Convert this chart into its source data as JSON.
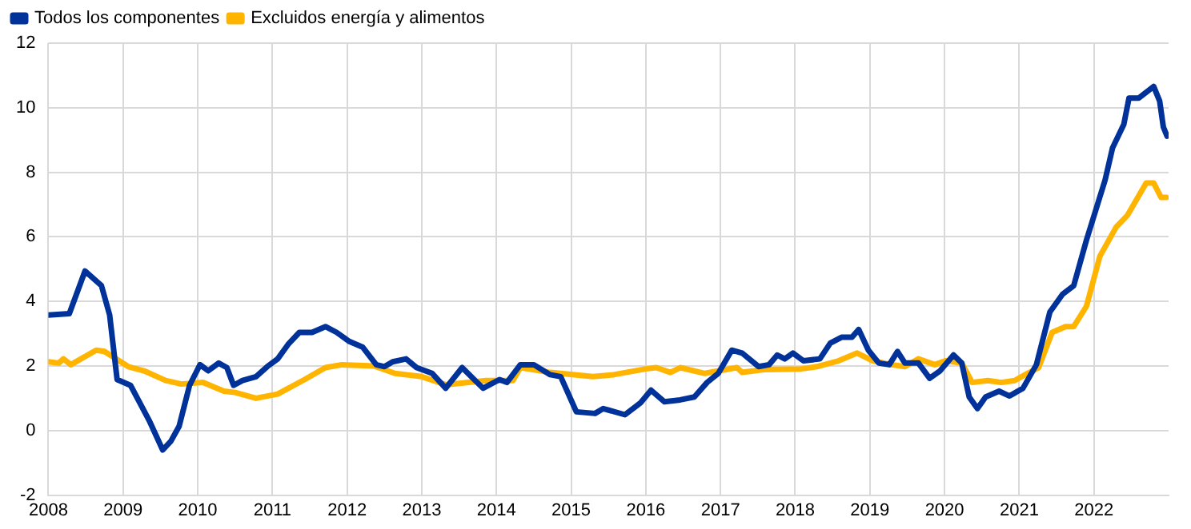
{
  "chart_data": {
    "type": "line",
    "xlim": [
      2008,
      2023
    ],
    "xticks": [
      2008,
      2009,
      2010,
      2011,
      2012,
      2013,
      2014,
      2015,
      2016,
      2017,
      2018,
      2019,
      2020,
      2021,
      2022
    ],
    "ylim": [
      -2,
      12
    ],
    "yticks": [
      -2,
      0,
      2,
      4,
      6,
      8,
      10,
      12
    ],
    "grid": true,
    "legend": "top left",
    "marker": "none",
    "line_style": "solid",
    "series": [
      {
        "name": "Todos los componentes",
        "color": "#003299",
        "x": [
          2008.0,
          2008.28,
          2008.49,
          2008.71,
          2008.82,
          2008.92,
          2009.1,
          2009.35,
          2009.53,
          2009.64,
          2009.75,
          2009.89,
          2010.03,
          2010.14,
          2010.28,
          2010.39,
          2010.48,
          2010.6,
          2010.78,
          2010.93,
          2011.07,
          2011.21,
          2011.36,
          2011.53,
          2011.71,
          2011.86,
          2012.03,
          2012.21,
          2012.39,
          2012.5,
          2012.61,
          2012.79,
          2012.93,
          2013.14,
          2013.32,
          2013.54,
          2013.82,
          2014.04,
          2014.14,
          2014.32,
          2014.5,
          2014.72,
          2014.86,
          2015.07,
          2015.32,
          2015.43,
          2015.72,
          2015.93,
          2016.07,
          2016.25,
          2016.46,
          2016.65,
          2016.82,
          2016.97,
          2017.15,
          2017.29,
          2017.51,
          2017.65,
          2017.76,
          2017.86,
          2017.97,
          2018.11,
          2018.33,
          2018.47,
          2018.62,
          2018.76,
          2018.85,
          2018.98,
          2019.12,
          2019.26,
          2019.37,
          2019.47,
          2019.65,
          2019.8,
          2019.94,
          2020.12,
          2020.23,
          2020.33,
          2020.44,
          2020.55,
          2020.73,
          2020.87,
          2021.05,
          2021.23,
          2021.41,
          2021.58,
          2021.73,
          2021.9,
          2022.15,
          2022.25,
          2022.4,
          2022.47,
          2022.6,
          2022.8,
          2022.88,
          2022.93,
          2022.98
        ],
        "values": [
          3.58,
          3.62,
          4.94,
          4.49,
          3.58,
          1.58,
          1.4,
          0.31,
          -0.6,
          -0.33,
          0.13,
          1.4,
          2.04,
          1.85,
          2.09,
          1.95,
          1.4,
          1.55,
          1.67,
          1.98,
          2.22,
          2.67,
          3.04,
          3.04,
          3.22,
          3.04,
          2.76,
          2.58,
          2.04,
          1.98,
          2.13,
          2.22,
          1.95,
          1.77,
          1.31,
          1.95,
          1.31,
          1.58,
          1.49,
          2.04,
          2.04,
          1.73,
          1.67,
          0.58,
          0.53,
          0.68,
          0.49,
          0.86,
          1.25,
          0.89,
          0.95,
          1.04,
          1.49,
          1.77,
          2.49,
          2.4,
          1.98,
          2.04,
          2.34,
          2.22,
          2.4,
          2.16,
          2.22,
          2.71,
          2.89,
          2.89,
          3.13,
          2.49,
          2.09,
          2.04,
          2.45,
          2.09,
          2.09,
          1.62,
          1.85,
          2.34,
          2.09,
          1.04,
          0.68,
          1.04,
          1.22,
          1.07,
          1.31,
          2.04,
          3.67,
          4.22,
          4.49,
          5.9,
          7.76,
          8.76,
          9.48,
          10.3,
          10.3,
          10.66,
          10.21,
          9.4,
          9.12
        ]
      },
      {
        "name": "Excluidos energía y alimentos",
        "color": "#ffb400",
        "x": [
          2008.0,
          2008.14,
          2008.2,
          2008.3,
          2008.64,
          2008.75,
          2009.07,
          2009.28,
          2009.57,
          2009.78,
          2010.07,
          2010.35,
          2010.5,
          2010.78,
          2011.07,
          2011.43,
          2011.71,
          2011.93,
          2012.36,
          2012.64,
          2013.0,
          2013.32,
          2013.86,
          2014.22,
          2014.32,
          2014.72,
          2015.29,
          2015.57,
          2016.0,
          2016.14,
          2016.33,
          2016.46,
          2016.79,
          2017.22,
          2017.29,
          2017.58,
          2018.08,
          2018.29,
          2018.58,
          2018.83,
          2019.04,
          2019.29,
          2019.47,
          2019.65,
          2019.87,
          2020.01,
          2020.23,
          2020.37,
          2020.58,
          2020.76,
          2020.94,
          2021.11,
          2021.26,
          2021.44,
          2021.62,
          2021.73,
          2021.9,
          2022.08,
          2022.3,
          2022.45,
          2022.7,
          2022.8,
          2022.9,
          2022.97
        ],
        "values": [
          2.13,
          2.09,
          2.22,
          2.04,
          2.49,
          2.45,
          1.98,
          1.85,
          1.55,
          1.44,
          1.49,
          1.22,
          1.18,
          1.0,
          1.13,
          1.58,
          1.95,
          2.04,
          2.0,
          1.77,
          1.67,
          1.42,
          1.55,
          1.55,
          1.95,
          1.8,
          1.67,
          1.73,
          1.91,
          1.95,
          1.8,
          1.95,
          1.77,
          1.95,
          1.8,
          1.89,
          1.91,
          1.98,
          2.16,
          2.4,
          2.16,
          2.04,
          1.98,
          2.22,
          2.04,
          2.16,
          2.09,
          1.49,
          1.55,
          1.49,
          1.55,
          1.77,
          1.95,
          3.04,
          3.22,
          3.22,
          3.85,
          5.4,
          6.31,
          6.67,
          7.67,
          7.67,
          7.22,
          7.22
        ]
      }
    ]
  }
}
